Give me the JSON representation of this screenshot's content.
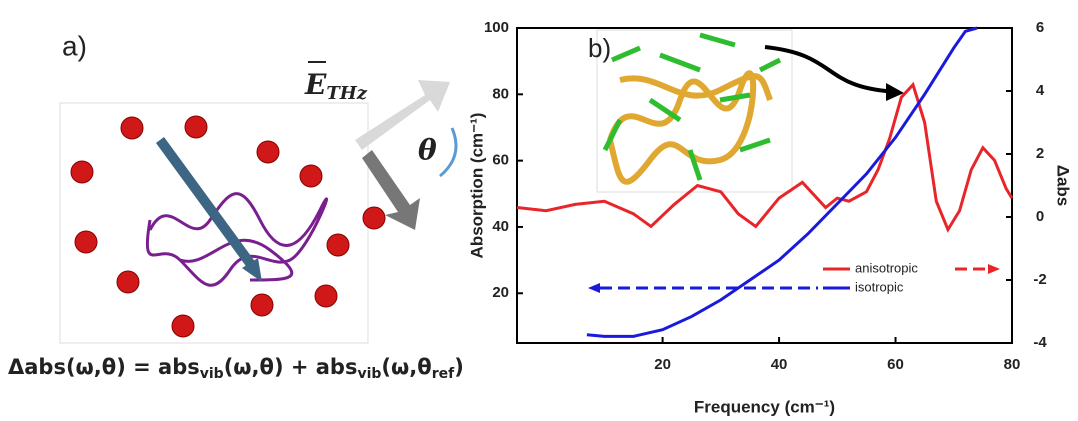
{
  "panel_a": {
    "label": "a)",
    "field_label": [
      "E",
      "THz"
    ],
    "angle_label": "θ",
    "equation": [
      "Δabs(ω,θ) = abs",
      "vib",
      "(ω,θ) + abs",
      "vib",
      "(ω,θ",
      "ref",
      ")"
    ]
  },
  "chart_data": {
    "type": "line",
    "panel_label": "b)",
    "x_label": "Frequency (cm⁻¹)",
    "y_label": "Absorption (cm⁻¹)",
    "y2_label": "Δabs",
    "xlim": [
      -5,
      80
    ],
    "xticks": [
      20,
      40,
      60,
      80
    ],
    "ylim": [
      5,
      100
    ],
    "yticks": [
      20,
      40,
      60,
      80,
      100
    ],
    "y2lim": [
      -4,
      6
    ],
    "y2ticks": [
      -4,
      -2,
      0,
      2,
      4,
      6
    ],
    "series": [
      {
        "name": "anisotropic",
        "color": "#e8262a",
        "axis": "y2",
        "x": [
          -5,
          0,
          5,
          10,
          15,
          18,
          22,
          26,
          30,
          33,
          36,
          40,
          44,
          48,
          50,
          52,
          55,
          57,
          59,
          61,
          63,
          65,
          67,
          69,
          71,
          73,
          75,
          77,
          79,
          80
        ],
        "values": [
          0.3,
          0.2,
          0.4,
          0.5,
          0.1,
          -0.3,
          0.4,
          1.0,
          0.8,
          0.1,
          -0.3,
          0.6,
          1.1,
          0.3,
          0.6,
          0.5,
          0.8,
          1.5,
          2.5,
          3.8,
          4.2,
          3.0,
          0.5,
          -0.4,
          0.2,
          1.5,
          2.2,
          1.8,
          0.9,
          0.6
        ]
      },
      {
        "name": "isotropic",
        "color": "#1a1adc",
        "x": [
          7,
          10,
          15,
          20,
          25,
          30,
          35,
          40,
          45,
          50,
          55,
          60,
          65,
          70,
          72,
          74
        ],
        "values": [
          7.5,
          7,
          7,
          9,
          13,
          18,
          24,
          30,
          38,
          47,
          56,
          67,
          80,
          94,
          99,
          100
        ]
      }
    ]
  }
}
